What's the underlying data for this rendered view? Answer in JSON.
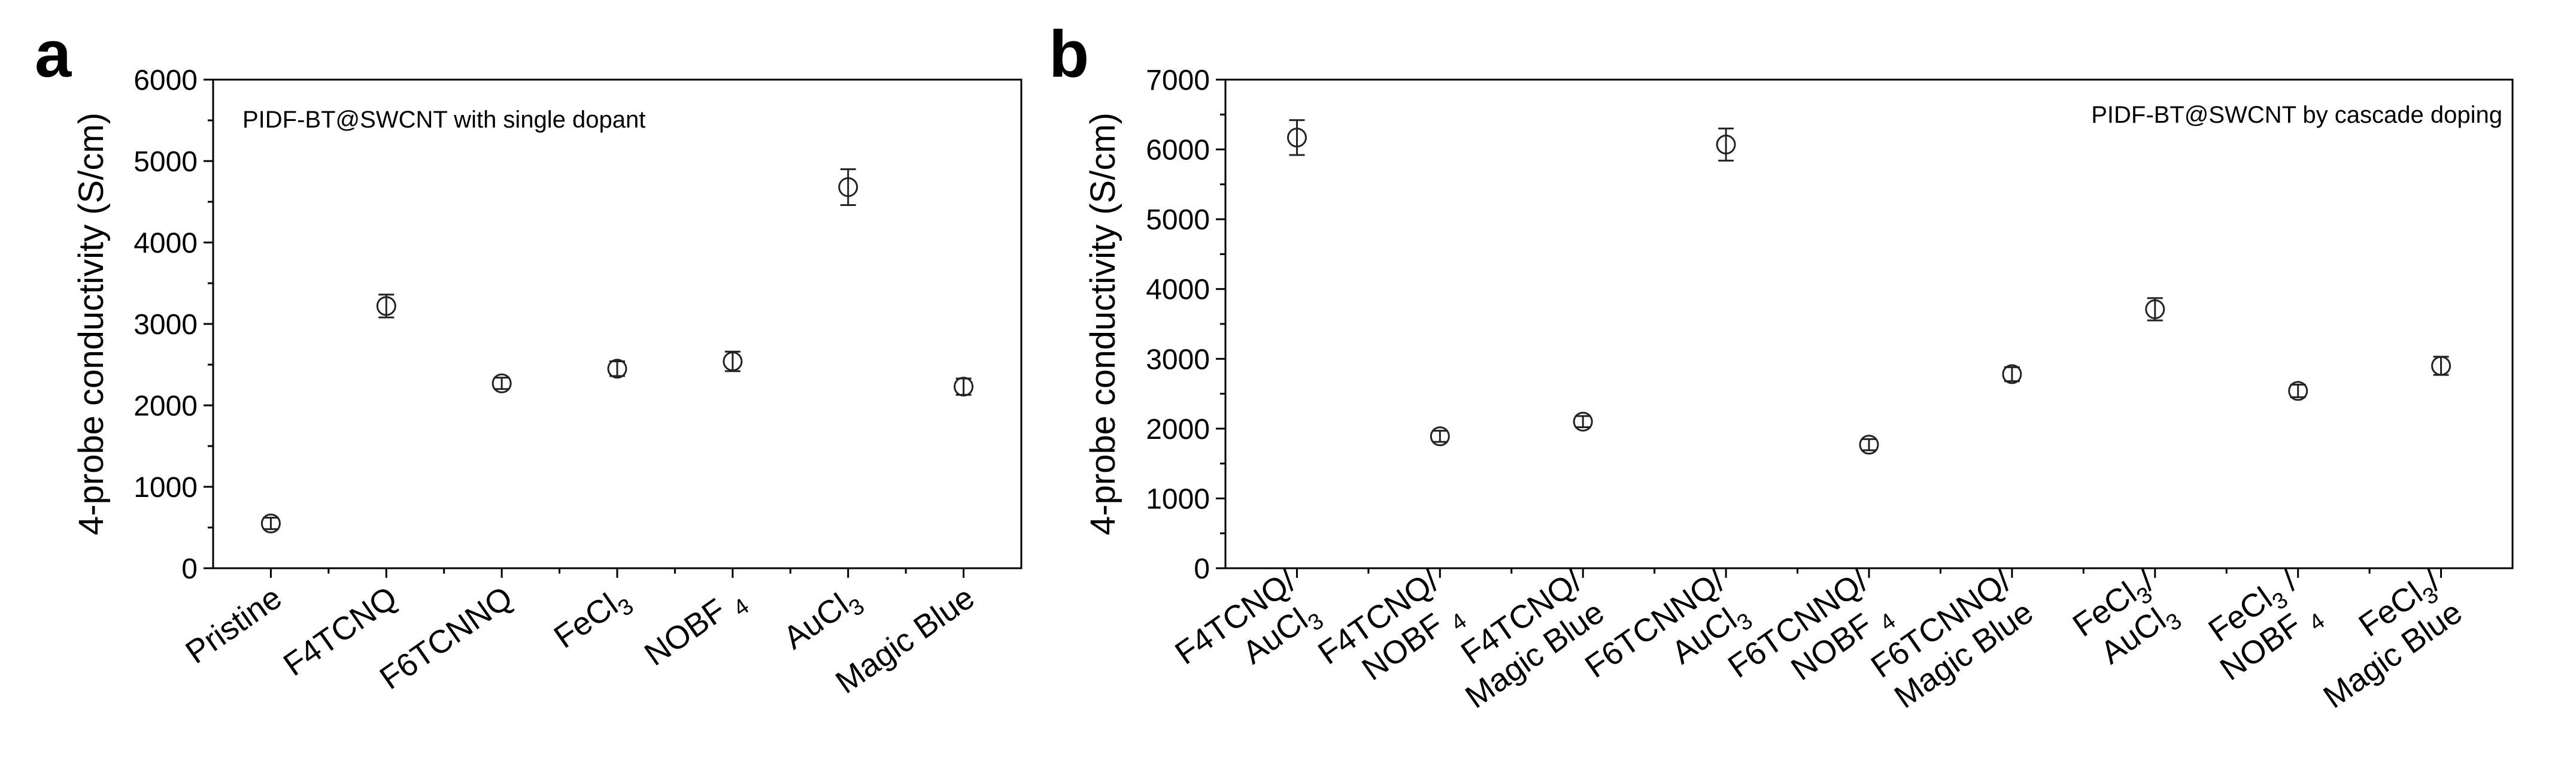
{
  "chart_data": [
    {
      "type": "scatter",
      "panel_label": "a",
      "annotation": "PIDF-BT@SWCNT with single dopant",
      "ylabel": "4-probe conductivity (S/cm)",
      "xlabel": "",
      "ylim": [
        0,
        6000
      ],
      "yticks": [
        0,
        1000,
        2000,
        3000,
        4000,
        5000,
        6000
      ],
      "categories": [
        {
          "text": "Pristine",
          "sub": ""
        },
        {
          "text": "F4TCNQ",
          "sub": ""
        },
        {
          "text": "F6TCNNQ",
          "sub": ""
        },
        {
          "text": "FeCl",
          "sub": "3"
        },
        {
          "text": "NOBF ",
          "sub": "4"
        },
        {
          "text": "AuCl",
          "sub": "3"
        },
        {
          "text": "Magic Blue",
          "sub": ""
        }
      ],
      "values": [
        550,
        3220,
        2270,
        2450,
        2540,
        4680,
        2230
      ],
      "errors": [
        70,
        140,
        70,
        90,
        120,
        220,
        100
      ],
      "marker": "open-circle",
      "grid": false,
      "legend": "none"
    },
    {
      "type": "scatter",
      "panel_label": "b",
      "annotation": "PIDF-BT@SWCNT by cascade doping",
      "ylabel": "4-probe conductivity (S/cm)",
      "xlabel": "",
      "ylim": [
        0,
        7000
      ],
      "yticks": [
        0,
        1000,
        2000,
        3000,
        4000,
        5000,
        6000,
        7000
      ],
      "categories": [
        {
          "line1": {
            "text": "F4TCNQ/",
            "sub": ""
          },
          "line2": {
            "text": "AuCl",
            "sub": "3"
          }
        },
        {
          "line1": {
            "text": "F4TCNQ/",
            "sub": ""
          },
          "line2": {
            "text": "NOBF ",
            "sub": "4"
          }
        },
        {
          "line1": {
            "text": "F4TCNQ/",
            "sub": ""
          },
          "line2": {
            "text": "Magic Blue",
            "sub": ""
          }
        },
        {
          "line1": {
            "text": "F6TCNNQ/",
            "sub": ""
          },
          "line2": {
            "text": "AuCl",
            "sub": "3"
          }
        },
        {
          "line1": {
            "text": "F6TCNNQ/",
            "sub": ""
          },
          "line2": {
            "text": "NOBF ",
            "sub": "4"
          }
        },
        {
          "line1": {
            "text": "F6TCNNQ/",
            "sub": ""
          },
          "line2": {
            "text": "Magic Blue",
            "sub": ""
          }
        },
        {
          "line1": {
            "text": "FeCl",
            "sub": "3",
            "after": "/"
          },
          "line2": {
            "text": "AuCl",
            "sub": "3"
          }
        },
        {
          "line1": {
            "text": "FeCl",
            "sub": "3",
            "after": " /"
          },
          "line2": {
            "text": "NOBF ",
            "sub": "4"
          }
        },
        {
          "line1": {
            "text": "FeCl",
            "sub": "3",
            "after": "/"
          },
          "line2": {
            "text": "Magic Blue",
            "sub": ""
          }
        }
      ],
      "values": [
        6170,
        1890,
        2100,
        6070,
        1770,
        2780,
        3710,
        2540,
        2900
      ],
      "errors": [
        250,
        80,
        80,
        230,
        80,
        100,
        160,
        90,
        130
      ],
      "marker": "open-circle",
      "grid": false,
      "legend": "none"
    }
  ]
}
